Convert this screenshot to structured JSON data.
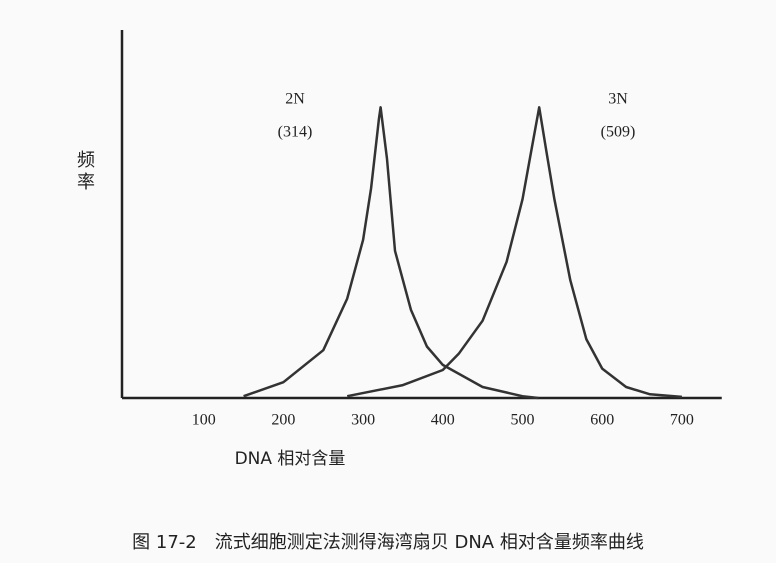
{
  "chart_data": {
    "type": "line",
    "xlabel": "DNA 相对含量",
    "ylabel": "频率",
    "caption": "图 17-2　流式细胞测定法测得海湾扇贝 DNA 相对含量频率曲线",
    "xlim": [
      0,
      750
    ],
    "ylim": [
      0,
      100
    ],
    "xticks": [
      100,
      200,
      300,
      400,
      500,
      600,
      700
    ],
    "annotations": [
      {
        "text": "2N",
        "value": "(314)"
      },
      {
        "text": "3N",
        "value": "(509)"
      }
    ],
    "series": [
      {
        "name": "2N",
        "color": "#333333",
        "x": [
          150,
          200,
          250,
          280,
          300,
          310,
          320,
          322,
          330,
          340,
          360,
          380,
          400,
          450,
          500,
          520
        ],
        "values": [
          0.5,
          4.3,
          13,
          27,
          43,
          57,
          76,
          79,
          65,
          40,
          24,
          14,
          9,
          3,
          0.5,
          0
        ]
      },
      {
        "name": "3N",
        "color": "#333333",
        "x": [
          280,
          350,
          400,
          420,
          450,
          480,
          500,
          510,
          521,
          530,
          540,
          560,
          580,
          600,
          630,
          660,
          700
        ],
        "values": [
          0.5,
          3.5,
          7.6,
          12,
          21,
          37,
          54,
          66,
          79,
          67,
          54,
          32,
          16,
          8,
          3,
          1,
          0.3
        ]
      }
    ]
  }
}
